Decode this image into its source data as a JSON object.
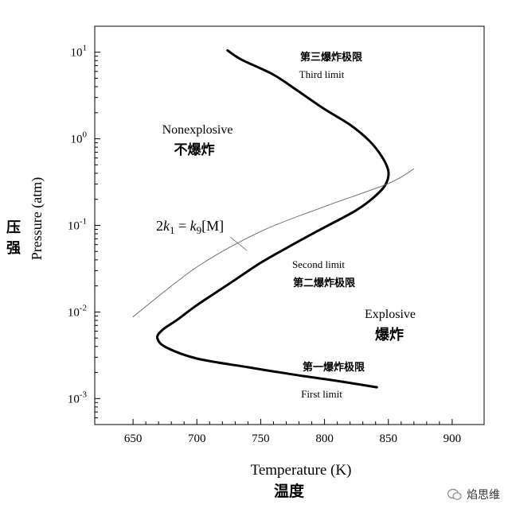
{
  "chart_data": {
    "type": "line",
    "xlabel": "Temperature (K)",
    "xlabel_cn": "温度",
    "ylabel": "Pressure (atm)",
    "ylabel_cn": "压强",
    "xlim": [
      620,
      925
    ],
    "ylim_log10": [
      -3.3,
      1.3
    ],
    "y_scale": "log",
    "x_ticks": [
      650,
      700,
      750,
      800,
      850,
      900
    ],
    "y_ticks": [
      {
        "exp": 1,
        "label": "10",
        "sup": "1"
      },
      {
        "exp": 0,
        "label": "10",
        "sup": "0"
      },
      {
        "exp": -1,
        "label": "10",
        "sup": "-1"
      },
      {
        "exp": -2,
        "label": "10",
        "sup": "-2"
      },
      {
        "exp": -3,
        "label": "10",
        "sup": "-3"
      }
    ],
    "grid": false,
    "series": [
      {
        "name": "explosion limit",
        "style": "thick",
        "points": [
          [
            724,
            10.5
          ],
          [
            735,
            8.2
          ],
          [
            760,
            5.5
          ],
          [
            780,
            3.5
          ],
          [
            800,
            2.2
          ],
          [
            820,
            1.45
          ],
          [
            835,
            0.95
          ],
          [
            845,
            0.62
          ],
          [
            850,
            0.42
          ],
          [
            848,
            0.3
          ],
          [
            840,
            0.22
          ],
          [
            825,
            0.15
          ],
          [
            800,
            0.095
          ],
          [
            775,
            0.06
          ],
          [
            750,
            0.037
          ],
          [
            725,
            0.021
          ],
          [
            700,
            0.012
          ],
          [
            685,
            0.0082
          ],
          [
            673,
            0.0062
          ],
          [
            669,
            0.005
          ],
          [
            676,
            0.0039
          ],
          [
            700,
            0.0029
          ],
          [
            740,
            0.0023
          ],
          [
            780,
            0.00185
          ],
          [
            810,
            0.0016
          ],
          [
            841,
            0.00135
          ]
        ]
      },
      {
        "name": "2k1 = k9[M]",
        "style": "thin",
        "points": [
          [
            650,
            0.0088
          ],
          [
            700,
            0.033
          ],
          [
            750,
            0.085
          ],
          [
            800,
            0.165
          ],
          [
            850,
            0.305
          ],
          [
            870,
            0.45
          ]
        ]
      }
    ],
    "annotations": {
      "third_cn": "第三爆炸极限",
      "third_en": "Third limit",
      "nonexplosive_en": "Nonexplosive",
      "nonexplosive_cn": "不爆炸",
      "second_en": "Second limit",
      "second_cn": "第二爆炸极限",
      "explosive_en": "Explosive",
      "explosive_cn": "爆炸",
      "first_cn": "第一爆炸极限",
      "first_en": "First limit"
    }
  },
  "watermark": {
    "text": "焰思维"
  }
}
